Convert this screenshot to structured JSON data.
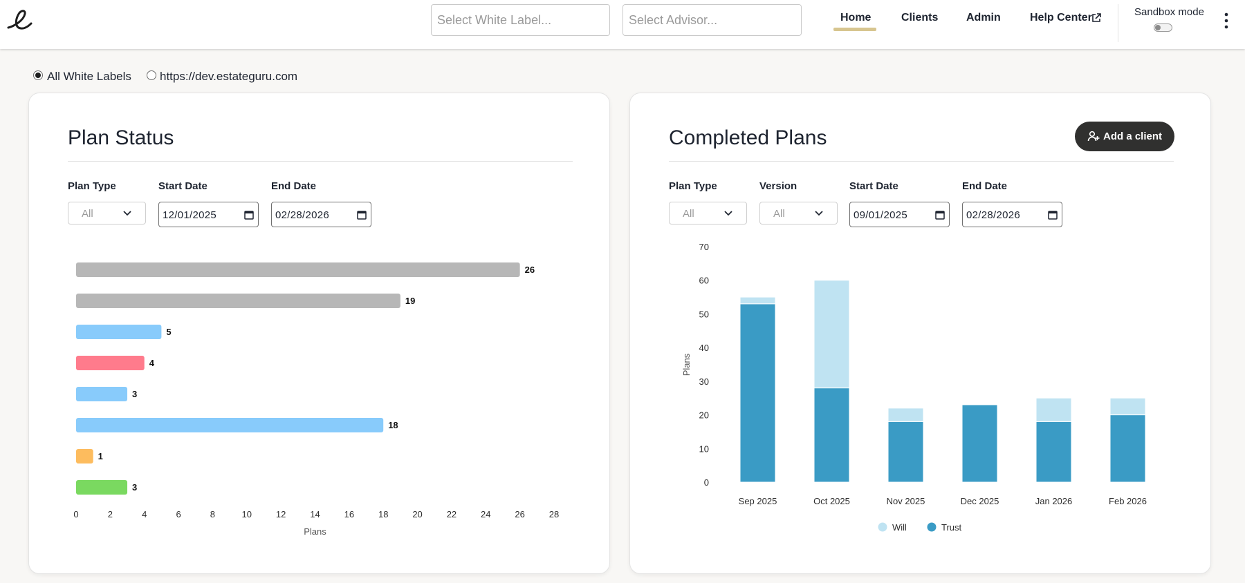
{
  "header": {
    "logo": "e",
    "white_label_placeholder": "Select White Label...",
    "advisor_placeholder": "Select Advisor...",
    "nav": [
      {
        "label": "Home",
        "active": true
      },
      {
        "label": "Clients"
      },
      {
        "label": "Admin"
      },
      {
        "label": "Help Center"
      }
    ],
    "sandbox_label": "Sandbox mode",
    "sandbox_enabled": false,
    "accent_color": "#d7c58f"
  },
  "filters": {
    "options": [
      {
        "label": "All White Labels",
        "checked": true
      },
      {
        "label": "https://dev.estateguru.com",
        "checked": false
      }
    ]
  },
  "plan_status": {
    "title": "Plan Status",
    "labels": {
      "plan_type": "Plan Type",
      "start_date": "Start Date",
      "end_date": "End Date"
    },
    "plan_type_value": "All",
    "start_date": "12/01/2025",
    "end_date": "02/28/2026"
  },
  "completed_plans": {
    "title": "Completed Plans",
    "add_client_label": "Add a client",
    "labels": {
      "plan_type": "Plan Type",
      "version": "Version",
      "start_date": "Start Date",
      "end_date": "End Date"
    },
    "plan_type_value": "All",
    "version_value": "All",
    "start_date": "09/01/2025",
    "end_date": "02/28/2026"
  },
  "chart_data": [
    {
      "type": "bar",
      "orientation": "horizontal",
      "title": "Plan Status",
      "categories": [
        "",
        "",
        "",
        "",
        "",
        "",
        "",
        ""
      ],
      "values": [
        26,
        19,
        5,
        4,
        3,
        18,
        1,
        3
      ],
      "colors": [
        "#b7b7b7",
        "#b7b7b7",
        "#88cbfb",
        "#ff7b8c",
        "#88cbfb",
        "#88cbfb",
        "#fdbc5e",
        "#7ad960"
      ],
      "xlabel": "Plans",
      "ylabel": "",
      "xlim": [
        0,
        28
      ],
      "xticks": [
        0,
        2,
        4,
        6,
        8,
        10,
        12,
        14,
        16,
        18,
        20,
        22,
        24,
        26,
        28
      ],
      "grid": false
    },
    {
      "type": "bar",
      "stacked": true,
      "title": "Completed Plans",
      "categories": [
        "Sep 2025",
        "Oct 2025",
        "Nov 2025",
        "Dec 2025",
        "Jan 2026",
        "Feb 2026"
      ],
      "series": [
        {
          "name": "Trust",
          "color": "#3a9bc5",
          "values": [
            53,
            28,
            18,
            23,
            18,
            20
          ]
        },
        {
          "name": "Will",
          "color": "#bfe3f2",
          "values": [
            2,
            32,
            4,
            0,
            7,
            5
          ]
        }
      ],
      "legend_order": [
        "Will",
        "Trust"
      ],
      "xlabel": "",
      "ylabel": "Plans",
      "ylim": [
        0,
        70
      ],
      "yticks": [
        0,
        10,
        20,
        30,
        40,
        50,
        60,
        70
      ],
      "legend": "bottom-center",
      "grid": false
    }
  ]
}
